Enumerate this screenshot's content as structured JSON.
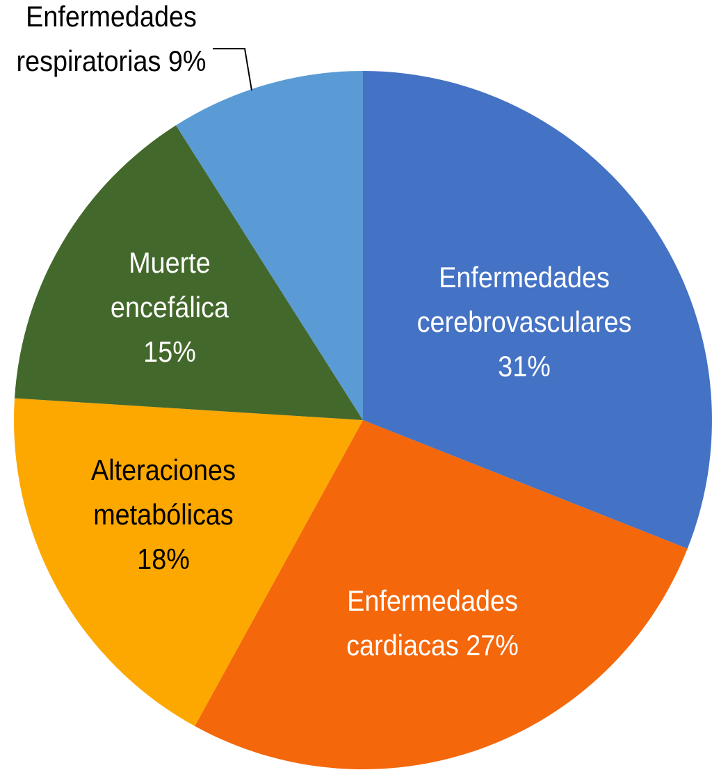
{
  "chart_data": {
    "type": "pie",
    "title": "",
    "start": "top",
    "direction": "clockwise",
    "slices": [
      {
        "label_lines": [
          "Enfermedades",
          "cerebrovasculares",
          "31%"
        ],
        "name": "Enfermedades cerebrovasculares",
        "value": 31,
        "color": "#4472C4",
        "label_color": "#FFFFFF"
      },
      {
        "label_lines": [
          "Enfermedades",
          "cardiacas 27%"
        ],
        "name": "Enfermedades cardiacas",
        "value": 27,
        "color": "#F4670B",
        "label_color": "#FFFFFF"
      },
      {
        "label_lines": [
          "Alteraciones",
          "metabólicas",
          "18%"
        ],
        "name": "Alteraciones metabólicas",
        "value": 18,
        "color": "#FDA800",
        "label_color": "#000000"
      },
      {
        "label_lines": [
          "Muerte",
          "encefálica",
          "15%"
        ],
        "name": "Muerte encefálica",
        "value": 15,
        "color": "#43682B",
        "label_color": "#FFFFFF"
      },
      {
        "label_lines": [
          "Enfermedades",
          "respiratorias 9%"
        ],
        "name": "Enfermedades respiratorias",
        "value": 9,
        "color": "#5B9BD5",
        "label_color": "#000000"
      }
    ]
  }
}
